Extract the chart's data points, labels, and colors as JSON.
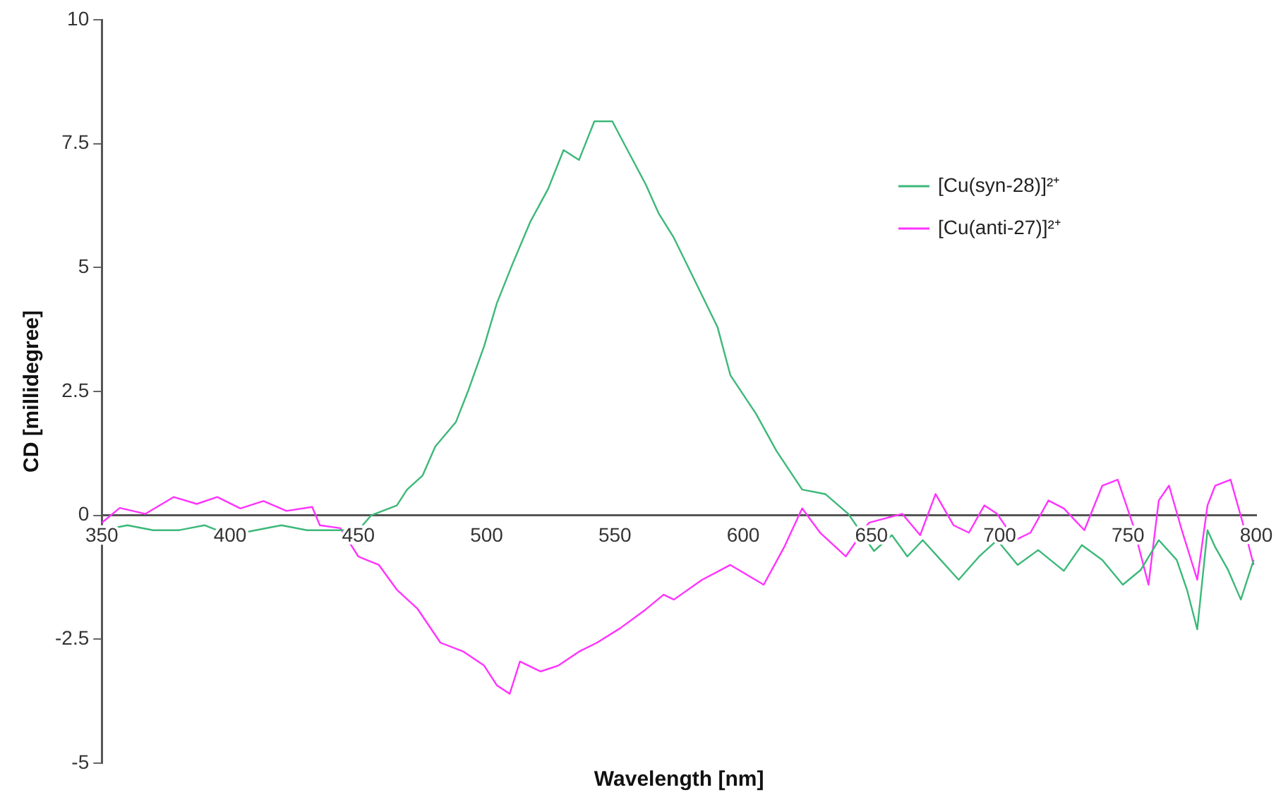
{
  "chart_data": {
    "type": "line",
    "xlabel": "Wavelength [nm]",
    "ylabel": "CD [millidegree]",
    "xlim": [
      350,
      800
    ],
    "xticks": [
      350,
      400,
      450,
      500,
      550,
      600,
      650,
      700,
      750,
      800
    ],
    "ylim": [
      -5,
      10
    ],
    "yticks": [
      -5,
      -2.5,
      0,
      2.5,
      5,
      7.5,
      10
    ],
    "grid": false,
    "legend": "top right",
    "marker": "none",
    "line_style": "solid",
    "series": [
      {
        "name": "[Cu(syn-28)]²⁺",
        "color": "#3cb878",
        "x": [
          350,
          360,
          370,
          380,
          390,
          400,
          410,
          420,
          430,
          440,
          450,
          455,
          460,
          465,
          469,
          475,
          480,
          488,
          493,
          499,
          504,
          510,
          517,
          524,
          530,
          536,
          542,
          549,
          554,
          562,
          567,
          573,
          580,
          590,
          595,
          605,
          613,
          623,
          632,
          641,
          651,
          658,
          664,
          670,
          677,
          684,
          692,
          699,
          707,
          715,
          725,
          732,
          740,
          748,
          755,
          762,
          769,
          773,
          777,
          781,
          784,
          789,
          794,
          799
        ],
        "values": [
          -0.3,
          -0.2,
          -0.3,
          -0.3,
          -0.2,
          -0.4,
          -0.3,
          -0.2,
          -0.3,
          -0.3,
          -0.3,
          0,
          0.1,
          0.2,
          0.52,
          0.8,
          1.39,
          1.88,
          2.54,
          3.41,
          4.28,
          5.06,
          5.92,
          6.59,
          7.37,
          7.17,
          7.95,
          7.95,
          7.46,
          6.68,
          6.1,
          5.6,
          4.86,
          3.8,
          2.83,
          2.05,
          1.3,
          0.52,
          0.43,
          0.03,
          -0.72,
          -0.4,
          -0.83,
          -0.5,
          -0.9,
          -1.3,
          -0.83,
          -0.5,
          -1.0,
          -0.7,
          -1.12,
          -0.6,
          -0.9,
          -1.4,
          -1.1,
          -0.5,
          -0.9,
          -1.5,
          -2.3,
          -0.3,
          -0.64,
          -1.1,
          -1.7,
          -0.9
        ]
      },
      {
        "name": "[Cu(anti-27)]²⁺",
        "color": "#ff33ff",
        "x": [
          350,
          357,
          367,
          378,
          387,
          395,
          404,
          413,
          422,
          432,
          435,
          443,
          450,
          458,
          465,
          473,
          482,
          491,
          499,
          504,
          509,
          513,
          521,
          528,
          536,
          543,
          552,
          562,
          569,
          573,
          584,
          595,
          608,
          616,
          623,
          630,
          640,
          649,
          662,
          669,
          675,
          682,
          688,
          694,
          699,
          706,
          712,
          719,
          725,
          733,
          740,
          746,
          752,
          758,
          762,
          766,
          771,
          777,
          781,
          784,
          790,
          795,
          799
        ],
        "values": [
          -0.15,
          0.15,
          0.03,
          0.37,
          0.23,
          0.37,
          0.14,
          0.29,
          0.09,
          0.17,
          -0.2,
          -0.26,
          -0.83,
          -1.0,
          -1.5,
          -1.88,
          -2.57,
          -2.75,
          -3.03,
          -3.43,
          -3.6,
          -2.95,
          -3.15,
          -3.03,
          -2.75,
          -2.57,
          -2.28,
          -1.9,
          -1.6,
          -1.7,
          -1.3,
          -1.0,
          -1.4,
          -0.64,
          0.14,
          -0.35,
          -0.83,
          -0.15,
          0.03,
          -0.4,
          0.43,
          -0.2,
          -0.35,
          0.2,
          0.03,
          -0.5,
          -0.35,
          0.3,
          0.14,
          -0.3,
          0.6,
          0.72,
          -0.2,
          -1.4,
          0.3,
          0.6,
          -0.3,
          -1.3,
          0.2,
          0.6,
          0.72,
          -0.2,
          -1.0
        ]
      }
    ]
  }
}
